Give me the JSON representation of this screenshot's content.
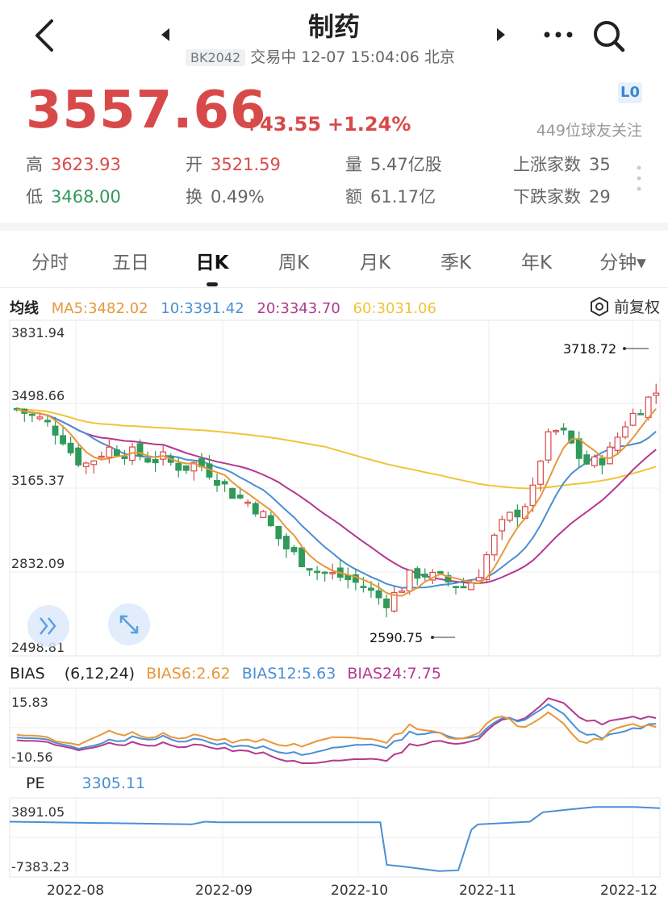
{
  "header": {
    "title": "制药",
    "code": "BK2042",
    "status": "交易中 12-07 15:04:06 北京"
  },
  "quote": {
    "price": "3557.66",
    "change": "+43.55",
    "change_pct": "+1.24%",
    "level_badge": "L0",
    "followers": "449位球友关注",
    "stats": [
      {
        "label": "高",
        "value": "3623.93",
        "tone": "red"
      },
      {
        "label": "开",
        "value": "3521.59",
        "tone": "red"
      },
      {
        "label": "量",
        "value": "5.47亿股",
        "tone": "plain"
      },
      {
        "label": "上涨家数",
        "value": "35",
        "tone": "plain"
      },
      {
        "label": "低",
        "value": "3468.00",
        "tone": "green"
      },
      {
        "label": "换",
        "value": "0.49%",
        "tone": "plain"
      },
      {
        "label": "额",
        "value": "61.17亿",
        "tone": "plain"
      },
      {
        "label": "下跌家数",
        "value": "29",
        "tone": "plain"
      }
    ]
  },
  "tabs": [
    "分时",
    "五日",
    "日K",
    "周K",
    "月K",
    "季K",
    "年K",
    "分钟▾"
  ],
  "active_tab": "日K",
  "ma": {
    "label": "均线",
    "ma5": "MA5:3482.02",
    "ma10": "10:3391.42",
    "ma20": "20:3343.70",
    "ma60": "60:3031.06",
    "restore": "前复权"
  },
  "colors": {
    "up": "#d84a4a",
    "down": "#2f9a5a",
    "ma5": "#e8973a",
    "ma10": "#4a8fd4",
    "ma20": "#b3398f",
    "ma60": "#f0c43a"
  },
  "chart_data": [
    {
      "type": "candlestick",
      "title": "日K",
      "y_ticks": [
        "3831.94",
        "3498.66",
        "3165.37",
        "2832.09",
        "2498.81"
      ],
      "ylim": [
        2498.81,
        3831.94
      ],
      "x_ticks": [
        "2022-08",
        "2022-09",
        "2022-10",
        "2022-11",
        "2022-12"
      ],
      "annotations": [
        {
          "text": "3718.72",
          "kind": "max"
        },
        {
          "text": "2590.75",
          "kind": "min"
        }
      ],
      "series_names": [
        "MA5",
        "10",
        "20",
        "60"
      ],
      "close_trend": [
        3490,
        3470,
        3450,
        3420,
        3380,
        3300,
        3260,
        3290,
        3330,
        3320,
        3310,
        3300,
        3280,
        3290,
        3260,
        3250,
        3270,
        3240,
        3200,
        3150,
        3120,
        3100,
        3050,
        2980,
        2920,
        2880,
        2850,
        2820,
        2810,
        2800,
        2780,
        2760,
        2720,
        2700,
        2740,
        2800,
        2820,
        2800,
        2790,
        2770,
        2760,
        2800,
        2900,
        3000,
        3050,
        3080,
        3150,
        3350,
        3400,
        3380,
        3300,
        3260,
        3280,
        3320,
        3420,
        3470,
        3520,
        3560
      ]
    },
    {
      "type": "line",
      "title": "BIAS",
      "params": "(6,12,24)",
      "bias6": "BIAS6:2.62",
      "bias12": "BIAS12:5.63",
      "bias24": "BIAS24:7.75",
      "y_ticks": [
        "15.83",
        "-10.56"
      ],
      "ylim": [
        -10.56,
        15.83
      ]
    },
    {
      "type": "line",
      "title": "PE",
      "value": "3305.11",
      "y_ticks": [
        "3891.05",
        "-7383.23"
      ],
      "ylim": [
        -7383.23,
        3891.05
      ]
    }
  ]
}
